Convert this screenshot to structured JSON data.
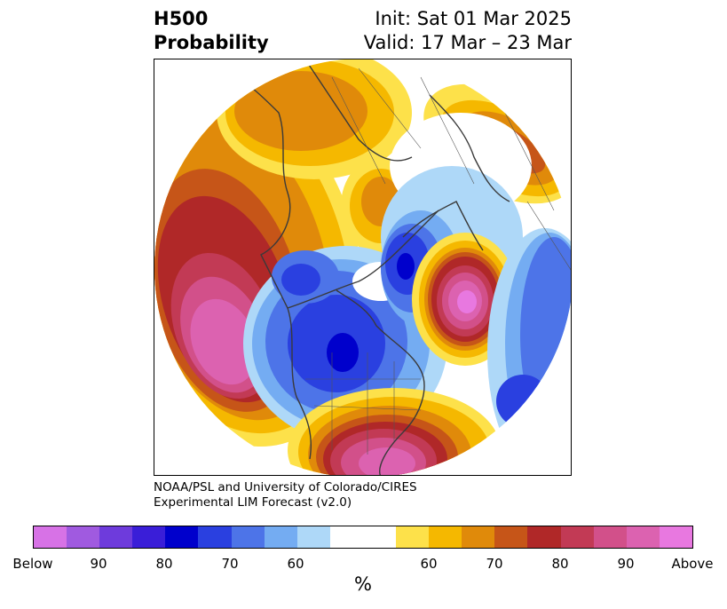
{
  "header": {
    "field_name": "H500",
    "field_type": "Probability",
    "init_text": "Init: Sat 01 Mar 2025",
    "valid_text": "Valid: 17 Mar – 23 Mar"
  },
  "credit": {
    "line1": "NOAA/PSL and University of Colorado/CIRES",
    "line2": "Experimental LIM Forecast (v2.0)"
  },
  "colorbar": {
    "colors": [
      "#d772e6",
      "#a05ae0",
      "#6e3bdc",
      "#3a1ed8",
      "#0000cc",
      "#2a40e0",
      "#4d74e8",
      "#74acf2",
      "#aed8f8",
      "#ffffff",
      "#ffffff",
      "#fde14a",
      "#f5b800",
      "#e08a0a",
      "#c65518",
      "#b02828",
      "#c23a55",
      "#d2508a",
      "#dc62b0",
      "#e878e0"
    ],
    "tick_labels": [
      "Below",
      "90",
      "80",
      "70",
      "60",
      "60",
      "70",
      "80",
      "90",
      "Above"
    ],
    "unit_label": "%"
  },
  "map": {
    "projection": "north-polar-stereographic",
    "anomalies": [
      {
        "region": "North Pacific",
        "sign": "above",
        "peak": "Above"
      },
      {
        "region": "North Atlantic",
        "sign": "above",
        "peak": "Above"
      },
      {
        "region": "Southeastern US",
        "sign": "above",
        "peak": "90"
      },
      {
        "region": "Central Canada",
        "sign": "below",
        "peak": "80"
      },
      {
        "region": "Greenland / Baffin",
        "sign": "below",
        "peak": "80"
      },
      {
        "region": "Western Europe / N Africa",
        "sign": "below",
        "peak": "70"
      }
    ]
  }
}
